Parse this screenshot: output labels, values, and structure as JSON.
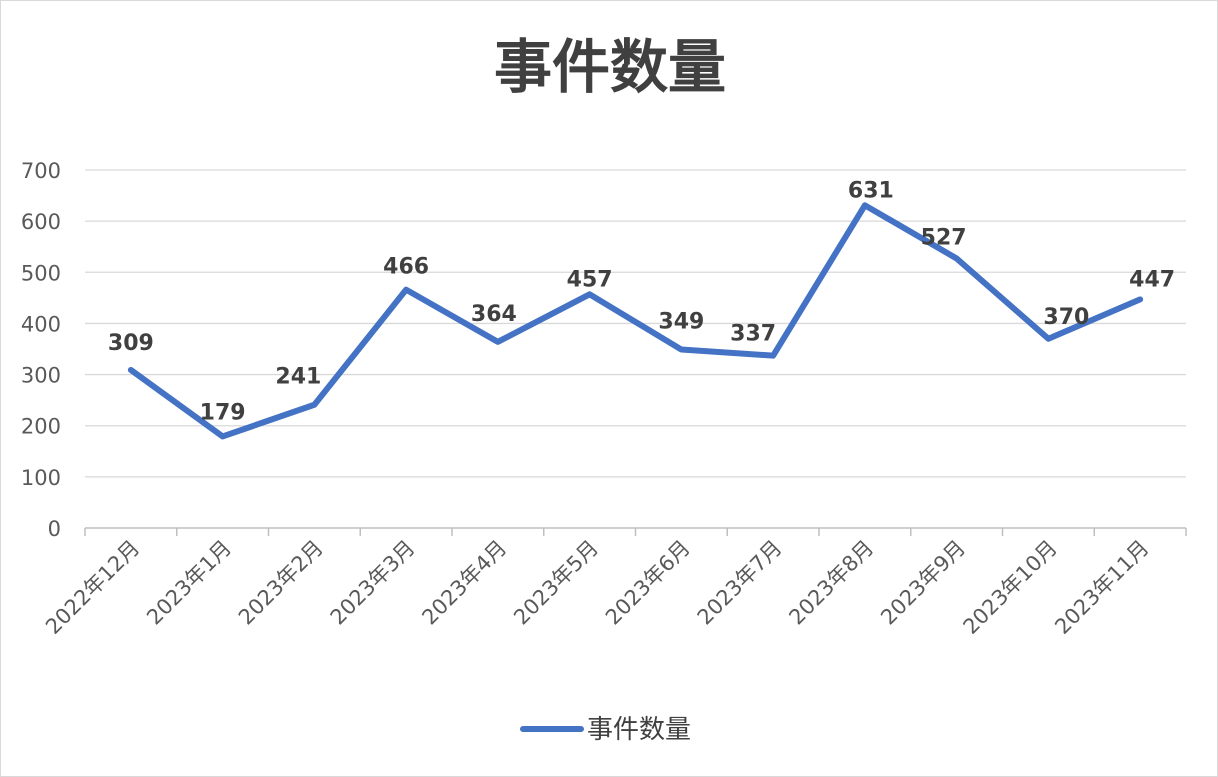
{
  "chart_data": {
    "type": "line",
    "title": "事件数量",
    "xlabel": "",
    "ylabel": "",
    "categories": [
      "2022年12月",
      "2023年1月",
      "2023年2月",
      "2023年3月",
      "2023年4月",
      "2023年5月",
      "2023年6月",
      "2023年7月",
      "2023年8月",
      "2023年9月",
      "2023年10月",
      "2023年11月"
    ],
    "series": [
      {
        "name": "事件数量",
        "values": [
          309,
          179,
          241,
          466,
          364,
          457,
          349,
          337,
          631,
          527,
          370,
          447
        ],
        "color": "#4472c4"
      }
    ],
    "ylim": [
      0,
      700
    ],
    "yticks": [
      0,
      100,
      200,
      300,
      400,
      500,
      600,
      700
    ],
    "grid": true,
    "data_labels": true,
    "legend_position": "bottom"
  }
}
